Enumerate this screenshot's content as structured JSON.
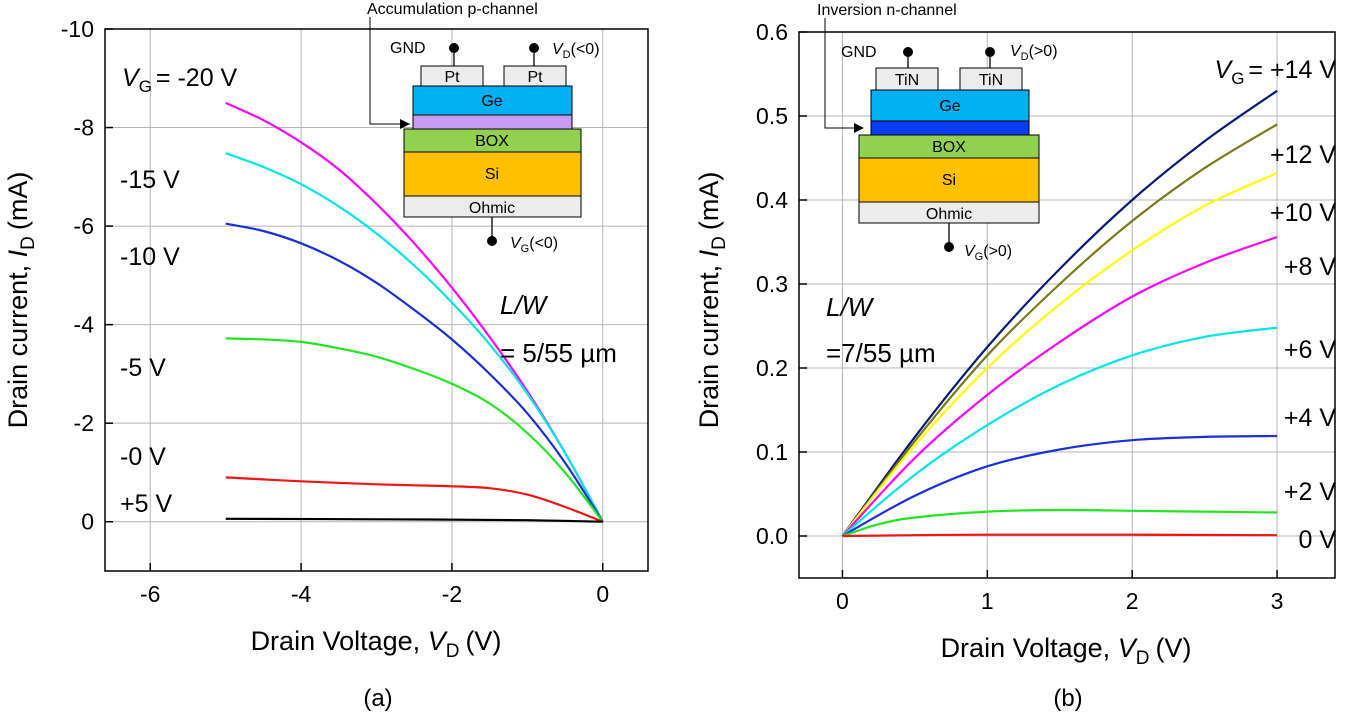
{
  "chart_data": [
    {
      "type": "line",
      "panel_label": "(a)",
      "xlabel_prefix": "Drain Voltage,",
      "xlabel_var": "V",
      "xlabel_sub": "D",
      "xlabel_unit": "(V)",
      "ylabel_prefix": "Drain current,",
      "ylabel_var": "I",
      "ylabel_sub": "D",
      "ylabel_unit": "(mA)",
      "xlim": [
        -6.6,
        0.6
      ],
      "ylim": [
        1,
        -10
      ],
      "xticks": [
        {
          "value": -6,
          "label": "-6"
        },
        {
          "value": -4,
          "label": "-4"
        },
        {
          "value": -2,
          "label": "-2"
        },
        {
          "value": 0,
          "label": "0"
        }
      ],
      "yticks": [
        {
          "value": 0,
          "label": "0"
        },
        {
          "value": -2,
          "label": "-2"
        },
        {
          "value": -4,
          "label": "-4"
        },
        {
          "value": -6,
          "label": "-6"
        },
        {
          "value": -8,
          "label": "-8"
        },
        {
          "value": -10,
          "label": "-10"
        }
      ],
      "vg_label": {
        "var": "V",
        "sub": "G",
        "text": "= -20 V"
      },
      "series": [
        {
          "name": "-20 V",
          "color": "#ff00ff",
          "x": [
            -5,
            -4.5,
            -4,
            -3.5,
            -3,
            -2.5,
            -2,
            -1.5,
            -1,
            -0.5,
            0
          ],
          "y": [
            -8.5,
            -8.15,
            -7.7,
            -7.15,
            -6.45,
            -5.65,
            -4.75,
            -3.75,
            -2.65,
            -1.4,
            0
          ]
        },
        {
          "name": "-15 V",
          "label": "-15 V",
          "color": "#00e5e5",
          "x": [
            -5,
            -4.5,
            -4,
            -3.5,
            -3,
            -2.5,
            -2,
            -1.5,
            -1,
            -0.5,
            0
          ],
          "y": [
            -7.48,
            -7.2,
            -6.85,
            -6.4,
            -5.85,
            -5.2,
            -4.45,
            -3.6,
            -2.6,
            -1.4,
            0
          ]
        },
        {
          "name": "-10 V",
          "label": "-10 V",
          "color": "#1a2fd6",
          "x": [
            -5,
            -4.5,
            -4,
            -3.5,
            -3,
            -2.5,
            -2,
            -1.5,
            -1,
            -0.5,
            0
          ],
          "y": [
            -6.05,
            -5.9,
            -5.65,
            -5.3,
            -4.85,
            -4.3,
            -3.7,
            -3.0,
            -2.2,
            -1.2,
            0
          ]
        },
        {
          "name": "-5 V",
          "label": "-5 V",
          "color": "#1fe61f",
          "x": [
            -5,
            -4.5,
            -4,
            -3.5,
            -3,
            -2.5,
            -2,
            -1.5,
            -1,
            -0.5,
            0
          ],
          "y": [
            -3.72,
            -3.7,
            -3.65,
            -3.52,
            -3.35,
            -3.1,
            -2.8,
            -2.4,
            -1.8,
            -1.0,
            0
          ]
        },
        {
          "name": "-0 V",
          "label": "-0 V",
          "color": "#f01414",
          "x": [
            -5,
            -4,
            -3,
            -2.5,
            -2,
            -1.5,
            -1,
            -0.5,
            0
          ],
          "y": [
            -0.9,
            -0.82,
            -0.76,
            -0.74,
            -0.72,
            -0.68,
            -0.55,
            -0.3,
            0
          ]
        },
        {
          "name": "+5 V",
          "label": "+5 V",
          "color": "#000000",
          "x": [
            -5,
            -3,
            -1,
            0
          ],
          "y": [
            -0.06,
            -0.05,
            -0.03,
            0
          ]
        }
      ],
      "annotation": {
        "line1": "L/W",
        "line2": "= 5/55 µm"
      },
      "inset": {
        "title": "Accumulation p-channel",
        "gnd": "GND",
        "contact": "Pt",
        "vd_var": "V",
        "vd_sub": "D",
        "vd_cond": "(<0)",
        "layers": [
          "Ge",
          "BOX",
          "Si",
          "Ohmic"
        ],
        "vg_var": "V",
        "vg_sub": "G",
        "vg_cond": "(<0)"
      }
    },
    {
      "type": "line",
      "panel_label": "(b)",
      "xlabel_prefix": "Drain Voltage,",
      "xlabel_var": "V",
      "xlabel_sub": "D",
      "xlabel_unit": "(V)",
      "ylabel_prefix": "Drain current,",
      "ylabel_var": "I",
      "ylabel_sub": "D",
      "ylabel_unit": "(mA)",
      "xlim": [
        -0.3,
        3.4
      ],
      "ylim": [
        -0.05,
        0.6
      ],
      "xticks": [
        {
          "value": 0,
          "label": "0"
        },
        {
          "value": 1,
          "label": "1"
        },
        {
          "value": 2,
          "label": "2"
        },
        {
          "value": 3,
          "label": "3"
        }
      ],
      "yticks": [
        {
          "value": 0,
          "label": "0.0"
        },
        {
          "value": 0.1,
          "label": "0.1"
        },
        {
          "value": 0.2,
          "label": "0.2"
        },
        {
          "value": 0.3,
          "label": "0.3"
        },
        {
          "value": 0.4,
          "label": "0.4"
        },
        {
          "value": 0.5,
          "label": "0.5"
        },
        {
          "value": 0.6,
          "label": "0.6"
        }
      ],
      "vg_label": {
        "var": "V",
        "sub": "G",
        "text": "= +14 V"
      },
      "series": [
        {
          "name": "+14 V",
          "color": "#0a1a7a",
          "x": [
            0,
            0.5,
            1,
            1.5,
            2,
            2.5,
            3
          ],
          "y": [
            0,
            0.118,
            0.225,
            0.318,
            0.4,
            0.47,
            0.53
          ]
        },
        {
          "name": "+12 V",
          "label": "+12 V",
          "color": "#7a7a1a",
          "x": [
            0,
            0.5,
            1,
            1.5,
            2,
            2.5,
            3
          ],
          "y": [
            0,
            0.113,
            0.215,
            0.3,
            0.375,
            0.438,
            0.49
          ]
        },
        {
          "name": "+10 V",
          "label": "+10 V",
          "color": "#ffff00",
          "x": [
            0,
            0.5,
            1,
            1.5,
            2,
            2.5,
            3
          ],
          "y": [
            0,
            0.108,
            0.2,
            0.276,
            0.34,
            0.393,
            0.432
          ]
        },
        {
          "name": "+8 V",
          "label": "+8 V",
          "color": "#ff00ff",
          "x": [
            0,
            0.5,
            1,
            1.5,
            2,
            2.5,
            3
          ],
          "y": [
            0,
            0.093,
            0.168,
            0.231,
            0.285,
            0.325,
            0.356
          ]
        },
        {
          "name": "+6 V",
          "label": "+6 V",
          "color": "#00e5e5",
          "x": [
            0,
            0.5,
            1,
            1.5,
            2,
            2.5,
            3
          ],
          "y": [
            0,
            0.073,
            0.132,
            0.18,
            0.215,
            0.237,
            0.248
          ]
        },
        {
          "name": "+4 V",
          "label": "+4 V",
          "color": "#1a2fd6",
          "x": [
            0,
            0.5,
            1,
            1.5,
            2,
            2.5,
            3
          ],
          "y": [
            0,
            0.048,
            0.083,
            0.103,
            0.114,
            0.118,
            0.119
          ]
        },
        {
          "name": "+2 V",
          "label": "+2 V",
          "color": "#1fe61f",
          "x": [
            0,
            0.25,
            0.5,
            1,
            1.5,
            2,
            2.5,
            3
          ],
          "y": [
            0,
            0.014,
            0.022,
            0.029,
            0.031,
            0.03,
            0.029,
            0.028
          ]
        },
        {
          "name": "0 V",
          "label": "0 V",
          "color": "#f01414",
          "x": [
            0,
            0.5,
            1,
            2,
            3
          ],
          "y": [
            0,
            0.001,
            0.0015,
            0.0015,
            0.001
          ]
        }
      ],
      "annotation": {
        "line1": "L/W",
        "line2": "=7/55 µm"
      },
      "inset": {
        "title": "Inversion  n-channel",
        "gnd": "GND",
        "contact": "TiN",
        "vd_var": "V",
        "vd_sub": "D",
        "vd_cond": "(>0)",
        "layers": [
          "Ge",
          "BOX",
          "Si",
          "Ohmic"
        ],
        "vg_var": "V",
        "vg_sub": "G",
        "vg_cond": "(>0)"
      }
    }
  ]
}
